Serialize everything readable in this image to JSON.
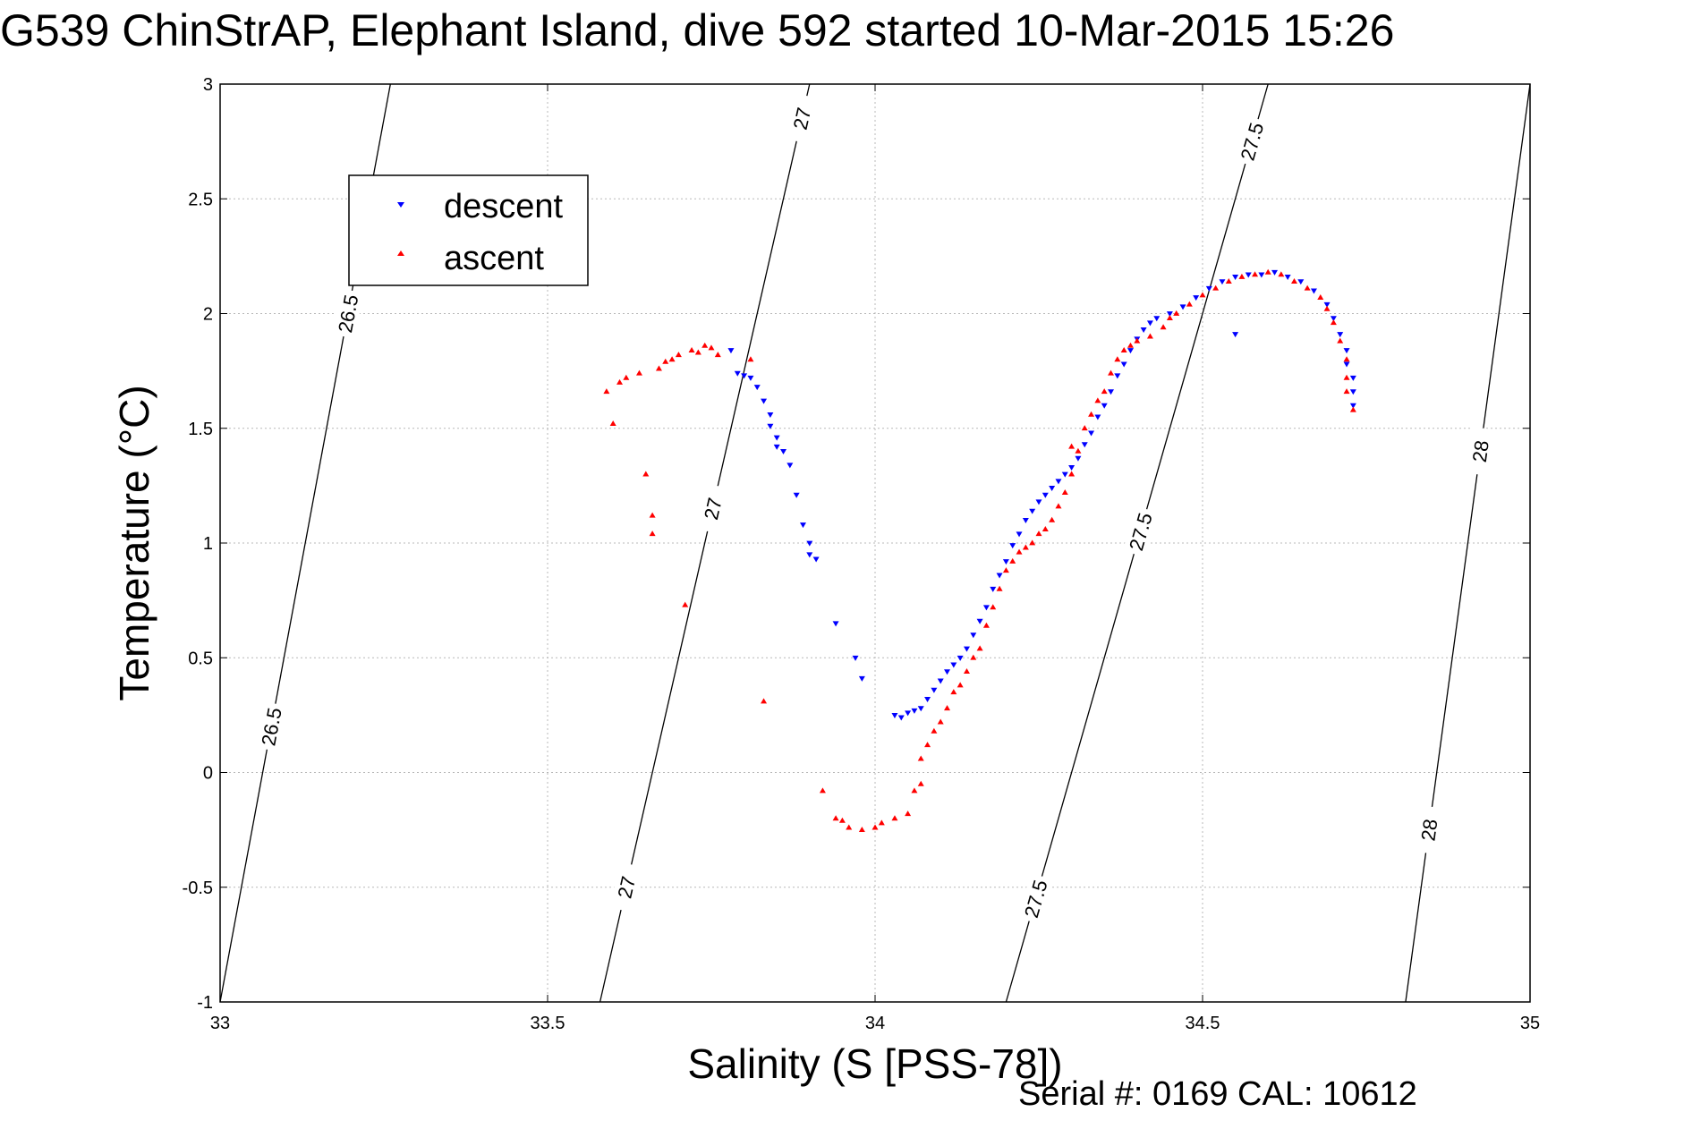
{
  "title": "G539 ChinStrAP, Elephant Island, dive 592 started 10-Mar-2015 15:26",
  "footer": "Serial #: 0169 CAL: 10612",
  "colors": {
    "descent": "#0000ff",
    "ascent": "#ff0000",
    "grid": "#b8b8b8",
    "isopycnal": "#000000"
  },
  "chart_data": {
    "type": "scatter",
    "title": "G539 ChinStrAP, Elephant Island, dive 592 started 10-Mar-2015 15:26",
    "xlabel": "Salinity (S [PSS-78])",
    "ylabel": "Temperature (°C)",
    "xlim": [
      33,
      35
    ],
    "ylim": [
      -1,
      3
    ],
    "xticks": [
      "33",
      "33.5",
      "34",
      "34.5",
      "35"
    ],
    "yticks": [
      "-1",
      "-0.5",
      "0",
      "0.5",
      "1",
      "1.5",
      "2",
      "2.5",
      "3"
    ],
    "grid": true,
    "legend_position": "top-left",
    "series": [
      {
        "name": "descent",
        "marker": "down-triangle",
        "color": "#0000ff",
        "points": [
          [
            33.78,
            1.84
          ],
          [
            33.79,
            1.74
          ],
          [
            33.8,
            1.73
          ],
          [
            33.81,
            1.72
          ],
          [
            33.82,
            1.68
          ],
          [
            33.83,
            1.62
          ],
          [
            33.84,
            1.56
          ],
          [
            33.84,
            1.51
          ],
          [
            33.85,
            1.46
          ],
          [
            33.85,
            1.42
          ],
          [
            33.86,
            1.4
          ],
          [
            33.87,
            1.34
          ],
          [
            33.88,
            1.21
          ],
          [
            33.89,
            1.08
          ],
          [
            33.9,
            1.0
          ],
          [
            33.9,
            0.95
          ],
          [
            33.91,
            0.93
          ],
          [
            33.94,
            0.65
          ],
          [
            33.97,
            0.5
          ],
          [
            33.98,
            0.41
          ],
          [
            34.03,
            0.25
          ],
          [
            34.04,
            0.24
          ],
          [
            34.05,
            0.26
          ],
          [
            34.06,
            0.27
          ],
          [
            34.07,
            0.28
          ],
          [
            34.08,
            0.32
          ],
          [
            34.09,
            0.36
          ],
          [
            34.1,
            0.4
          ],
          [
            34.11,
            0.44
          ],
          [
            34.12,
            0.47
          ],
          [
            34.13,
            0.5
          ],
          [
            34.14,
            0.54
          ],
          [
            34.15,
            0.6
          ],
          [
            34.16,
            0.66
          ],
          [
            34.17,
            0.72
          ],
          [
            34.18,
            0.8
          ],
          [
            34.19,
            0.86
          ],
          [
            34.2,
            0.92
          ],
          [
            34.21,
            0.99
          ],
          [
            34.22,
            1.04
          ],
          [
            34.23,
            1.1
          ],
          [
            34.24,
            1.14
          ],
          [
            34.25,
            1.18
          ],
          [
            34.26,
            1.21
          ],
          [
            34.27,
            1.24
          ],
          [
            34.28,
            1.27
          ],
          [
            34.29,
            1.3
          ],
          [
            34.3,
            1.33
          ],
          [
            34.31,
            1.37
          ],
          [
            34.32,
            1.43
          ],
          [
            34.33,
            1.48
          ],
          [
            34.34,
            1.55
          ],
          [
            34.35,
            1.6
          ],
          [
            34.36,
            1.66
          ],
          [
            34.37,
            1.73
          ],
          [
            34.38,
            1.78
          ],
          [
            34.39,
            1.84
          ],
          [
            34.4,
            1.89
          ],
          [
            34.41,
            1.93
          ],
          [
            34.42,
            1.96
          ],
          [
            34.43,
            1.98
          ],
          [
            34.45,
            2.0
          ],
          [
            34.47,
            2.03
          ],
          [
            34.49,
            2.07
          ],
          [
            34.51,
            2.11
          ],
          [
            34.53,
            2.14
          ],
          [
            34.55,
            2.16
          ],
          [
            34.55,
            1.91
          ],
          [
            34.57,
            2.17
          ],
          [
            34.59,
            2.17
          ],
          [
            34.61,
            2.18
          ],
          [
            34.63,
            2.16
          ],
          [
            34.65,
            2.14
          ],
          [
            34.67,
            2.1
          ],
          [
            34.69,
            2.04
          ],
          [
            34.7,
            1.98
          ],
          [
            34.71,
            1.91
          ],
          [
            34.72,
            1.84
          ],
          [
            34.72,
            1.78
          ],
          [
            34.73,
            1.72
          ],
          [
            34.73,
            1.66
          ],
          [
            34.73,
            1.6
          ]
        ]
      },
      {
        "name": "ascent",
        "marker": "up-triangle",
        "color": "#ff0000",
        "points": [
          [
            33.59,
            1.66
          ],
          [
            33.6,
            1.52
          ],
          [
            33.61,
            1.7
          ],
          [
            33.62,
            1.72
          ],
          [
            33.64,
            1.74
          ],
          [
            33.65,
            1.3
          ],
          [
            33.66,
            1.04
          ],
          [
            33.66,
            1.12
          ],
          [
            33.67,
            1.76
          ],
          [
            33.68,
            1.79
          ],
          [
            33.69,
            1.8
          ],
          [
            33.7,
            1.82
          ],
          [
            33.71,
            0.73
          ],
          [
            33.72,
            1.84
          ],
          [
            33.73,
            1.83
          ],
          [
            33.74,
            1.86
          ],
          [
            33.75,
            1.85
          ],
          [
            33.76,
            1.82
          ],
          [
            33.81,
            1.8
          ],
          [
            33.83,
            0.31
          ],
          [
            33.92,
            -0.08
          ],
          [
            33.94,
            -0.2
          ],
          [
            33.95,
            -0.21
          ],
          [
            33.96,
            -0.24
          ],
          [
            33.98,
            -0.25
          ],
          [
            34.0,
            -0.24
          ],
          [
            34.01,
            -0.22
          ],
          [
            34.03,
            -0.2
          ],
          [
            34.05,
            -0.18
          ],
          [
            34.06,
            -0.08
          ],
          [
            34.07,
            -0.05
          ],
          [
            34.07,
            0.06
          ],
          [
            34.08,
            0.12
          ],
          [
            34.09,
            0.18
          ],
          [
            34.1,
            0.22
          ],
          [
            34.11,
            0.28
          ],
          [
            34.12,
            0.35
          ],
          [
            34.13,
            0.38
          ],
          [
            34.14,
            0.44
          ],
          [
            34.15,
            0.5
          ],
          [
            34.16,
            0.54
          ],
          [
            34.17,
            0.64
          ],
          [
            34.18,
            0.72
          ],
          [
            34.19,
            0.8
          ],
          [
            34.2,
            0.88
          ],
          [
            34.21,
            0.92
          ],
          [
            34.22,
            0.96
          ],
          [
            34.23,
            0.98
          ],
          [
            34.24,
            1.0
          ],
          [
            34.25,
            1.04
          ],
          [
            34.26,
            1.06
          ],
          [
            34.27,
            1.1
          ],
          [
            34.28,
            1.16
          ],
          [
            34.29,
            1.22
          ],
          [
            34.3,
            1.3
          ],
          [
            34.3,
            1.42
          ],
          [
            34.31,
            1.4
          ],
          [
            34.32,
            1.5
          ],
          [
            34.33,
            1.56
          ],
          [
            34.34,
            1.62
          ],
          [
            34.35,
            1.66
          ],
          [
            34.36,
            1.74
          ],
          [
            34.37,
            1.8
          ],
          [
            34.38,
            1.84
          ],
          [
            34.39,
            1.86
          ],
          [
            34.4,
            1.88
          ],
          [
            34.42,
            1.9
          ],
          [
            34.44,
            1.94
          ],
          [
            34.45,
            1.98
          ],
          [
            34.46,
            2.0
          ],
          [
            34.48,
            2.04
          ],
          [
            34.5,
            2.08
          ],
          [
            34.52,
            2.11
          ],
          [
            34.54,
            2.14
          ],
          [
            34.56,
            2.16
          ],
          [
            34.58,
            2.17
          ],
          [
            34.6,
            2.18
          ],
          [
            34.62,
            2.17
          ],
          [
            34.64,
            2.14
          ],
          [
            34.66,
            2.11
          ],
          [
            34.68,
            2.07
          ],
          [
            34.69,
            2.02
          ],
          [
            34.7,
            1.96
          ],
          [
            34.71,
            1.88
          ],
          [
            34.72,
            1.8
          ],
          [
            34.72,
            1.72
          ],
          [
            34.72,
            1.66
          ],
          [
            34.73,
            1.58
          ]
        ]
      }
    ],
    "isopycnals": [
      {
        "sigma": "26.5",
        "s_at_tmin": 33.0,
        "s_at_tmax": 33.26,
        "labels_at_t": [
          2.0,
          0.2
        ]
      },
      {
        "sigma": "27",
        "s_at_tmin": 33.58,
        "s_at_tmax": 33.9,
        "labels_at_t": [
          -0.5,
          1.15,
          2.85
        ]
      },
      {
        "sigma": "27.5",
        "s_at_tmin": 34.2,
        "s_at_tmax": 34.6,
        "labels_at_t": [
          -0.55,
          1.05,
          2.75
        ]
      },
      {
        "sigma": "28",
        "s_at_tmin": 34.81,
        "s_at_tmax": 35.0,
        "labels_at_t": [
          -0.25,
          1.4
        ]
      }
    ]
  }
}
